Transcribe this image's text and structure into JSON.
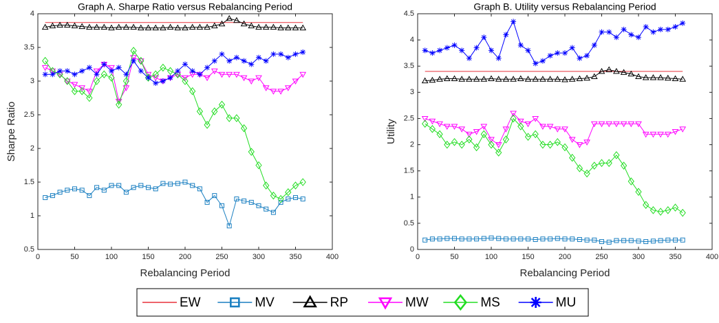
{
  "chart_data": [
    {
      "type": "line",
      "title": "Graph A. Sharpe Ratio versus Rebalancing Period",
      "x_label": "Rebalancing Period",
      "y_label": "Sharpe Ratio",
      "x": [
        10,
        20,
        30,
        40,
        50,
        60,
        70,
        80,
        90,
        100,
        110,
        120,
        130,
        140,
        150,
        160,
        170,
        180,
        190,
        200,
        210,
        220,
        230,
        240,
        250,
        260,
        270,
        280,
        290,
        300,
        310,
        320,
        330,
        340,
        350,
        360
      ],
      "xlim": [
        0,
        400
      ],
      "xticks": [
        0,
        50,
        100,
        150,
        200,
        250,
        300,
        350,
        400
      ],
      "ylim": [
        0.5,
        4
      ],
      "yticks": [
        0.5,
        1,
        1.5,
        2,
        2.5,
        3,
        3.5,
        4
      ],
      "series": [
        {
          "name": "EW",
          "color": "#e8303a",
          "marker": "none",
          "values": [
            3.87,
            3.87,
            3.87,
            3.87,
            3.87,
            3.87,
            3.87,
            3.87,
            3.87,
            3.87,
            3.87,
            3.87,
            3.87,
            3.87,
            3.87,
            3.87,
            3.87,
            3.87,
            3.87,
            3.87,
            3.87,
            3.87,
            3.87,
            3.87,
            3.87,
            3.87,
            3.87,
            3.87,
            3.87,
            3.87,
            3.87,
            3.87,
            3.87,
            3.87,
            3.87,
            3.87
          ]
        },
        {
          "name": "MV",
          "color": "#1a7fc1",
          "marker": "square",
          "values": [
            1.27,
            1.3,
            1.35,
            1.38,
            1.4,
            1.38,
            1.3,
            1.42,
            1.38,
            1.45,
            1.45,
            1.35,
            1.42,
            1.45,
            1.42,
            1.4,
            1.48,
            1.47,
            1.48,
            1.5,
            1.45,
            1.4,
            1.2,
            1.3,
            1.15,
            0.85,
            1.25,
            1.22,
            1.2,
            1.15,
            1.1,
            1.05,
            1.2,
            1.25,
            1.27,
            1.25
          ]
        },
        {
          "name": "RP",
          "color": "#000000",
          "marker": "triangle",
          "values": [
            3.8,
            3.82,
            3.83,
            3.83,
            3.82,
            3.81,
            3.8,
            3.8,
            3.8,
            3.79,
            3.8,
            3.8,
            3.8,
            3.79,
            3.79,
            3.79,
            3.79,
            3.8,
            3.79,
            3.79,
            3.8,
            3.8,
            3.8,
            3.82,
            3.85,
            3.93,
            3.9,
            3.85,
            3.82,
            3.8,
            3.8,
            3.8,
            3.79,
            3.79,
            3.79,
            3.79
          ]
        },
        {
          "name": "MW",
          "color": "#ff00ff",
          "marker": "triangle-down",
          "values": [
            3.2,
            3.15,
            3.1,
            3.0,
            2.95,
            2.9,
            2.85,
            3.15,
            3.25,
            3.2,
            2.7,
            2.9,
            3.35,
            3.3,
            3.1,
            3.05,
            3.0,
            3.05,
            3.1,
            3.05,
            3.1,
            3.1,
            3.05,
            3.15,
            3.1,
            3.1,
            3.1,
            3.05,
            3.0,
            3.05,
            2.9,
            2.85,
            2.85,
            2.9,
            3.0,
            3.1
          ]
        },
        {
          "name": "MS",
          "color": "#22dd22",
          "marker": "diamond",
          "values": [
            3.3,
            3.15,
            3.1,
            3.0,
            2.85,
            2.85,
            2.75,
            3.0,
            3.1,
            3.05,
            2.65,
            3.0,
            3.45,
            3.3,
            3.05,
            3.1,
            3.2,
            3.15,
            3.1,
            3.0,
            2.85,
            2.55,
            2.35,
            2.55,
            2.65,
            2.45,
            2.45,
            2.3,
            1.95,
            1.75,
            1.45,
            1.3,
            1.25,
            1.35,
            1.45,
            1.5
          ]
        },
        {
          "name": "MU",
          "color": "#0000ff",
          "marker": "star",
          "values": [
            3.1,
            3.1,
            3.15,
            3.15,
            3.1,
            3.15,
            3.2,
            3.1,
            3.25,
            3.15,
            3.2,
            3.1,
            3.3,
            3.15,
            3.05,
            2.97,
            3.0,
            3.05,
            3.15,
            3.25,
            3.15,
            3.1,
            3.2,
            3.3,
            3.4,
            3.3,
            3.35,
            3.3,
            3.25,
            3.35,
            3.3,
            3.4,
            3.4,
            3.35,
            3.4,
            3.43
          ]
        }
      ]
    },
    {
      "type": "line",
      "title": "Graph B. Utility versus Rebalancing Period",
      "x_label": "Rebalancing Period",
      "y_label": "Utility",
      "x": [
        10,
        20,
        30,
        40,
        50,
        60,
        70,
        80,
        90,
        100,
        110,
        120,
        130,
        140,
        150,
        160,
        170,
        180,
        190,
        200,
        210,
        220,
        230,
        240,
        250,
        260,
        270,
        280,
        290,
        300,
        310,
        320,
        330,
        340,
        350,
        360
      ],
      "xlim": [
        0,
        400
      ],
      "xticks": [
        0,
        50,
        100,
        150,
        200,
        250,
        300,
        350,
        400
      ],
      "ylim": [
        0,
        4.5
      ],
      "yticks": [
        0,
        0.5,
        1,
        1.5,
        2,
        2.5,
        3,
        3.5,
        4,
        4.5
      ],
      "series": [
        {
          "color": "#e8303a",
          "marker": "none",
          "values": [
            3.4,
            3.4,
            3.4,
            3.4,
            3.4,
            3.4,
            3.4,
            3.4,
            3.4,
            3.4,
            3.4,
            3.4,
            3.4,
            3.4,
            3.4,
            3.4,
            3.4,
            3.4,
            3.4,
            3.4,
            3.4,
            3.4,
            3.4,
            3.4,
            3.4,
            3.4,
            3.4,
            3.4,
            3.4,
            3.4,
            3.4,
            3.4,
            3.4,
            3.4,
            3.4,
            3.4
          ]
        },
        {
          "color": "#1a7fc1",
          "marker": "square",
          "values": [
            0.18,
            0.2,
            0.2,
            0.21,
            0.21,
            0.2,
            0.2,
            0.2,
            0.21,
            0.22,
            0.21,
            0.2,
            0.2,
            0.2,
            0.2,
            0.19,
            0.2,
            0.2,
            0.21,
            0.2,
            0.2,
            0.19,
            0.18,
            0.18,
            0.15,
            0.14,
            0.17,
            0.17,
            0.17,
            0.16,
            0.15,
            0.16,
            0.17,
            0.18,
            0.18,
            0.18
          ]
        },
        {
          "color": "#000000",
          "marker": "triangle",
          "values": [
            3.22,
            3.23,
            3.25,
            3.26,
            3.26,
            3.25,
            3.25,
            3.25,
            3.25,
            3.26,
            3.25,
            3.25,
            3.25,
            3.26,
            3.25,
            3.25,
            3.25,
            3.25,
            3.25,
            3.24,
            3.25,
            3.26,
            3.27,
            3.3,
            3.4,
            3.43,
            3.4,
            3.38,
            3.35,
            3.3,
            3.28,
            3.28,
            3.28,
            3.27,
            3.26,
            3.25
          ]
        },
        {
          "color": "#ff00ff",
          "marker": "triangle-down",
          "values": [
            2.5,
            2.45,
            2.4,
            2.35,
            2.35,
            2.3,
            2.2,
            2.25,
            2.35,
            2.1,
            2.0,
            2.3,
            2.6,
            2.45,
            2.4,
            2.5,
            2.35,
            2.35,
            2.3,
            2.3,
            2.1,
            2.0,
            2.05,
            2.4,
            2.4,
            2.4,
            2.4,
            2.4,
            2.4,
            2.4,
            2.2,
            2.2,
            2.2,
            2.2,
            2.25,
            2.3
          ]
        },
        {
          "color": "#22dd22",
          "marker": "diamond",
          "values": [
            2.4,
            2.3,
            2.2,
            2.0,
            2.05,
            2.0,
            2.1,
            1.95,
            2.2,
            2.0,
            1.85,
            2.1,
            2.5,
            2.35,
            2.15,
            2.2,
            2.0,
            2.0,
            2.05,
            1.95,
            1.75,
            1.55,
            1.45,
            1.6,
            1.65,
            1.65,
            1.8,
            1.6,
            1.3,
            1.1,
            0.85,
            0.75,
            0.72,
            0.75,
            0.8,
            0.7
          ]
        },
        {
          "color": "#0000ff",
          "marker": "star",
          "values": [
            3.8,
            3.75,
            3.8,
            3.85,
            3.9,
            3.8,
            3.65,
            3.85,
            4.05,
            3.8,
            3.65,
            4.1,
            4.35,
            3.9,
            3.8,
            3.55,
            3.6,
            3.7,
            3.75,
            3.75,
            3.85,
            3.65,
            3.7,
            3.9,
            4.15,
            4.15,
            4.05,
            4.2,
            4.1,
            4.05,
            4.25,
            4.15,
            4.2,
            4.2,
            4.25,
            4.32
          ]
        }
      ]
    }
  ]
}
